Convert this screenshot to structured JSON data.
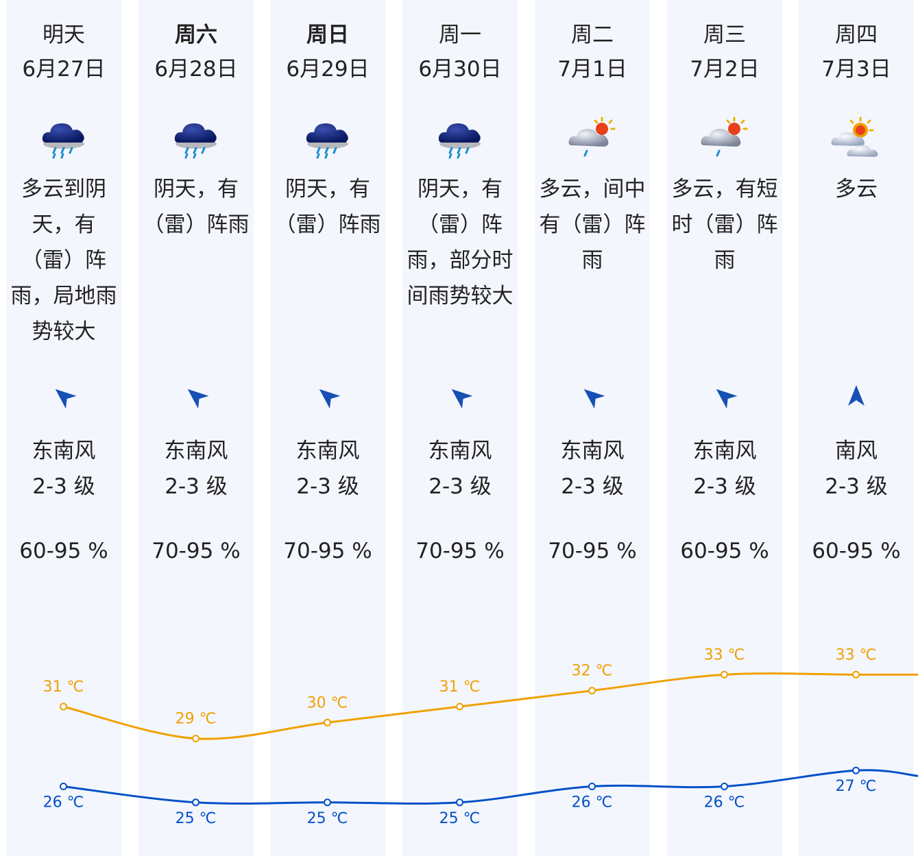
{
  "days": [
    {
      "day": "明天",
      "date": "6月27日",
      "bold": false,
      "icon": "rain-cloud-icon",
      "desc": "多云到阴天，有（雷）阵雨，局地雨势较大",
      "wind_dir": "东南风",
      "wind_level": "2-3 级",
      "arrow_rot": -50,
      "humidity": "60-95 %"
    },
    {
      "day": "周六",
      "date": "6月28日",
      "bold": true,
      "icon": "rain-cloud-icon",
      "desc": "阴天，有（雷）阵雨",
      "wind_dir": "东南风",
      "wind_level": "2-3 级",
      "arrow_rot": -50,
      "humidity": "70-95 %"
    },
    {
      "day": "周日",
      "date": "6月29日",
      "bold": true,
      "icon": "rain-cloud-icon",
      "desc": "阴天，有（雷）阵雨",
      "wind_dir": "东南风",
      "wind_level": "2-3 级",
      "arrow_rot": -50,
      "humidity": "70-95 %"
    },
    {
      "day": "周一",
      "date": "6月30日",
      "bold": false,
      "icon": "rain-cloud-icon",
      "desc": "阴天，有（雷）阵雨，部分时间雨势较大",
      "wind_dir": "东南风",
      "wind_level": "2-3 级",
      "arrow_rot": -50,
      "humidity": "70-95 %"
    },
    {
      "day": "周二",
      "date": "7月1日",
      "bold": false,
      "icon": "sun-cloud-shower-icon",
      "desc": "多云，间中有（雷）阵雨",
      "wind_dir": "东南风",
      "wind_level": "2-3 级",
      "arrow_rot": -50,
      "humidity": "70-95 %"
    },
    {
      "day": "周三",
      "date": "7月2日",
      "bold": false,
      "icon": "sun-cloud-shower-icon",
      "desc": "多云，有短时（雷）阵雨",
      "wind_dir": "东南风",
      "wind_level": "2-3 级",
      "arrow_rot": -50,
      "humidity": "60-95 %"
    },
    {
      "day": "周四",
      "date": "7月3日",
      "bold": false,
      "icon": "partly-cloudy-icon",
      "desc": "多云",
      "wind_dir": "南风",
      "wind_level": "2-3 级",
      "arrow_rot": 0,
      "humidity": "60-95 %"
    }
  ],
  "colors": {
    "column_bg": "#f4f6fd",
    "high_line": "#f0a000",
    "low_line": "#0050c8",
    "arrow": "#1650b4"
  },
  "chart_data": {
    "type": "line",
    "categories": [
      "6月27日",
      "6月28日",
      "6月29日",
      "6月30日",
      "7月1日",
      "7月2日",
      "7月3日"
    ],
    "series": [
      {
        "values": [
          31,
          29,
          30,
          31,
          32,
          33,
          33
        ],
        "labels": [
          "31 ℃",
          "29 ℃",
          "30 ℃",
          "31 ℃",
          "32 ℃",
          "33 ℃",
          "33 ℃"
        ]
      },
      {
        "values": [
          26,
          25,
          25,
          25,
          26,
          26,
          27
        ],
        "labels": [
          "26 ℃",
          "25 ℃",
          "25 ℃",
          "25 ℃",
          "26 ℃",
          "26 ℃",
          "27 ℃"
        ]
      }
    ]
  }
}
